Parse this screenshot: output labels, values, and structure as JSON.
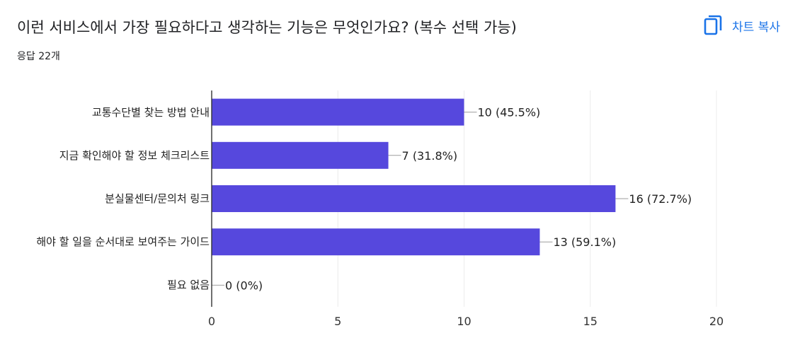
{
  "header": {
    "title": "이런 서비스에서 가장 필요하다고 생각하는 기능은 무엇인가요? (복수 선택 가능)",
    "response_count": "응답 22개",
    "copy_button_label": "차트 복사",
    "copy_icon": "copy-icon"
  },
  "colors": {
    "bar": "#5648DD",
    "accent": "#1a73e8",
    "grid": "#ececec",
    "axis": "#333333"
  },
  "chart_data": {
    "type": "bar",
    "orientation": "horizontal",
    "categories": [
      "교통수단별 찾는 방법 안내",
      "지금 확인해야 할 정보 체크리스트",
      "분실물센터/문의처 링크",
      "해야 할 일을 순서대로 보여주는 가이드",
      "필요 없음"
    ],
    "values": [
      10,
      7,
      16,
      13,
      0
    ],
    "value_labels": [
      "10 (45.5%)",
      "7 (31.8%)",
      "16 (72.7%)",
      "13 (59.1%)",
      "0 (0%)"
    ],
    "xlim": [
      0,
      20
    ],
    "xticks": [
      0,
      5,
      10,
      15,
      20
    ],
    "grid": true
  }
}
